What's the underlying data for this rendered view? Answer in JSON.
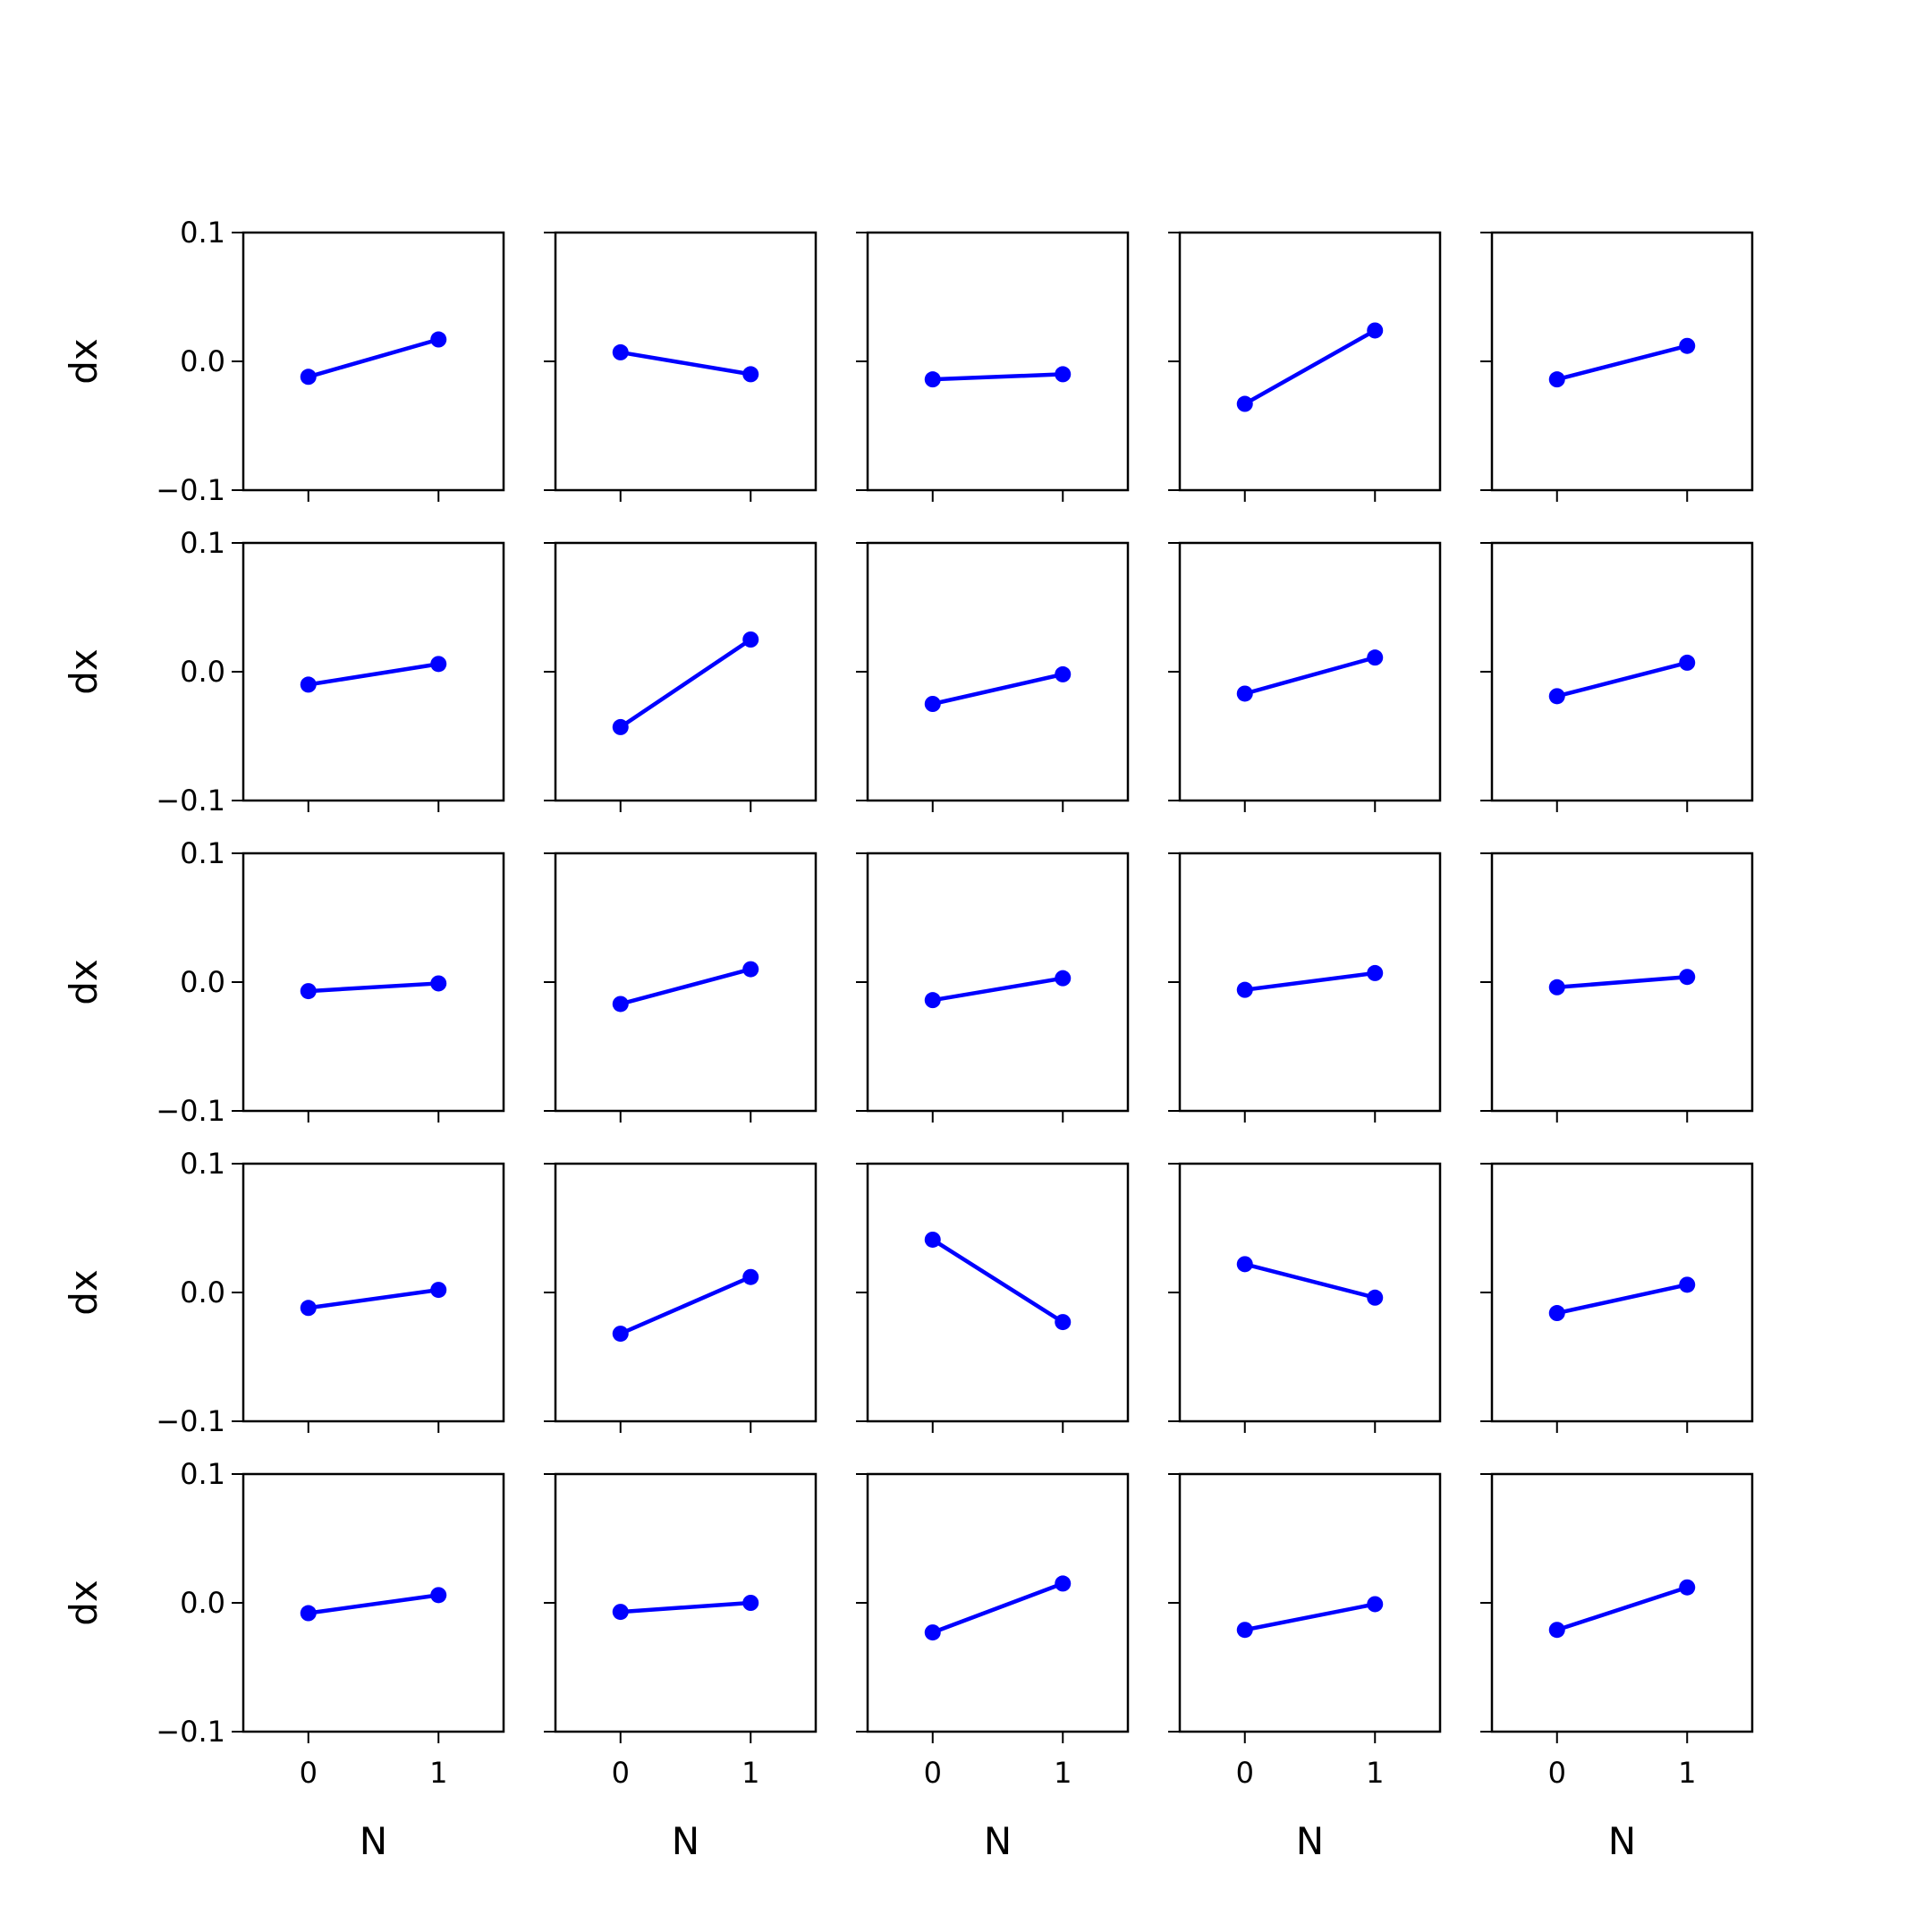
{
  "chart_data": {
    "type": "line",
    "layout": "5x5 grid of subplots",
    "shared_x": true,
    "shared_y": true,
    "xlabel": "N",
    "ylabel": "dx",
    "xlim": [
      -0.5,
      1.5
    ],
    "ylim": [
      -0.1,
      0.1
    ],
    "xticks": [
      0,
      1
    ],
    "xtick_labels": [
      "0",
      "1"
    ],
    "yticks": [
      -0.1,
      0.0,
      0.1
    ],
    "ytick_labels": [
      "−0.1",
      "0.0",
      "0.1"
    ],
    "grid": false,
    "legend": "none",
    "marker": "circle",
    "line_color": "#0000ff",
    "x": [
      0,
      1
    ],
    "panels": [
      [
        [
          -0.012,
          0.017
        ],
        [
          0.007,
          -0.01
        ],
        [
          -0.014,
          -0.01
        ],
        [
          -0.033,
          0.024
        ],
        [
          -0.014,
          0.012
        ]
      ],
      [
        [
          -0.01,
          0.006
        ],
        [
          -0.043,
          0.025
        ],
        [
          -0.025,
          -0.002
        ],
        [
          -0.017,
          0.011
        ],
        [
          -0.019,
          0.007
        ]
      ],
      [
        [
          -0.007,
          -0.001
        ],
        [
          -0.017,
          0.01
        ],
        [
          -0.014,
          0.003
        ],
        [
          -0.006,
          0.007
        ],
        [
          -0.004,
          0.004
        ]
      ],
      [
        [
          -0.012,
          0.002
        ],
        [
          -0.032,
          0.012
        ],
        [
          0.041,
          -0.023
        ],
        [
          0.022,
          -0.004
        ],
        [
          -0.016,
          0.006
        ]
      ],
      [
        [
          -0.008,
          0.006
        ],
        [
          -0.007,
          0.0
        ],
        [
          -0.023,
          0.015
        ],
        [
          -0.021,
          -0.001
        ],
        [
          -0.021,
          0.012
        ]
      ]
    ]
  }
}
